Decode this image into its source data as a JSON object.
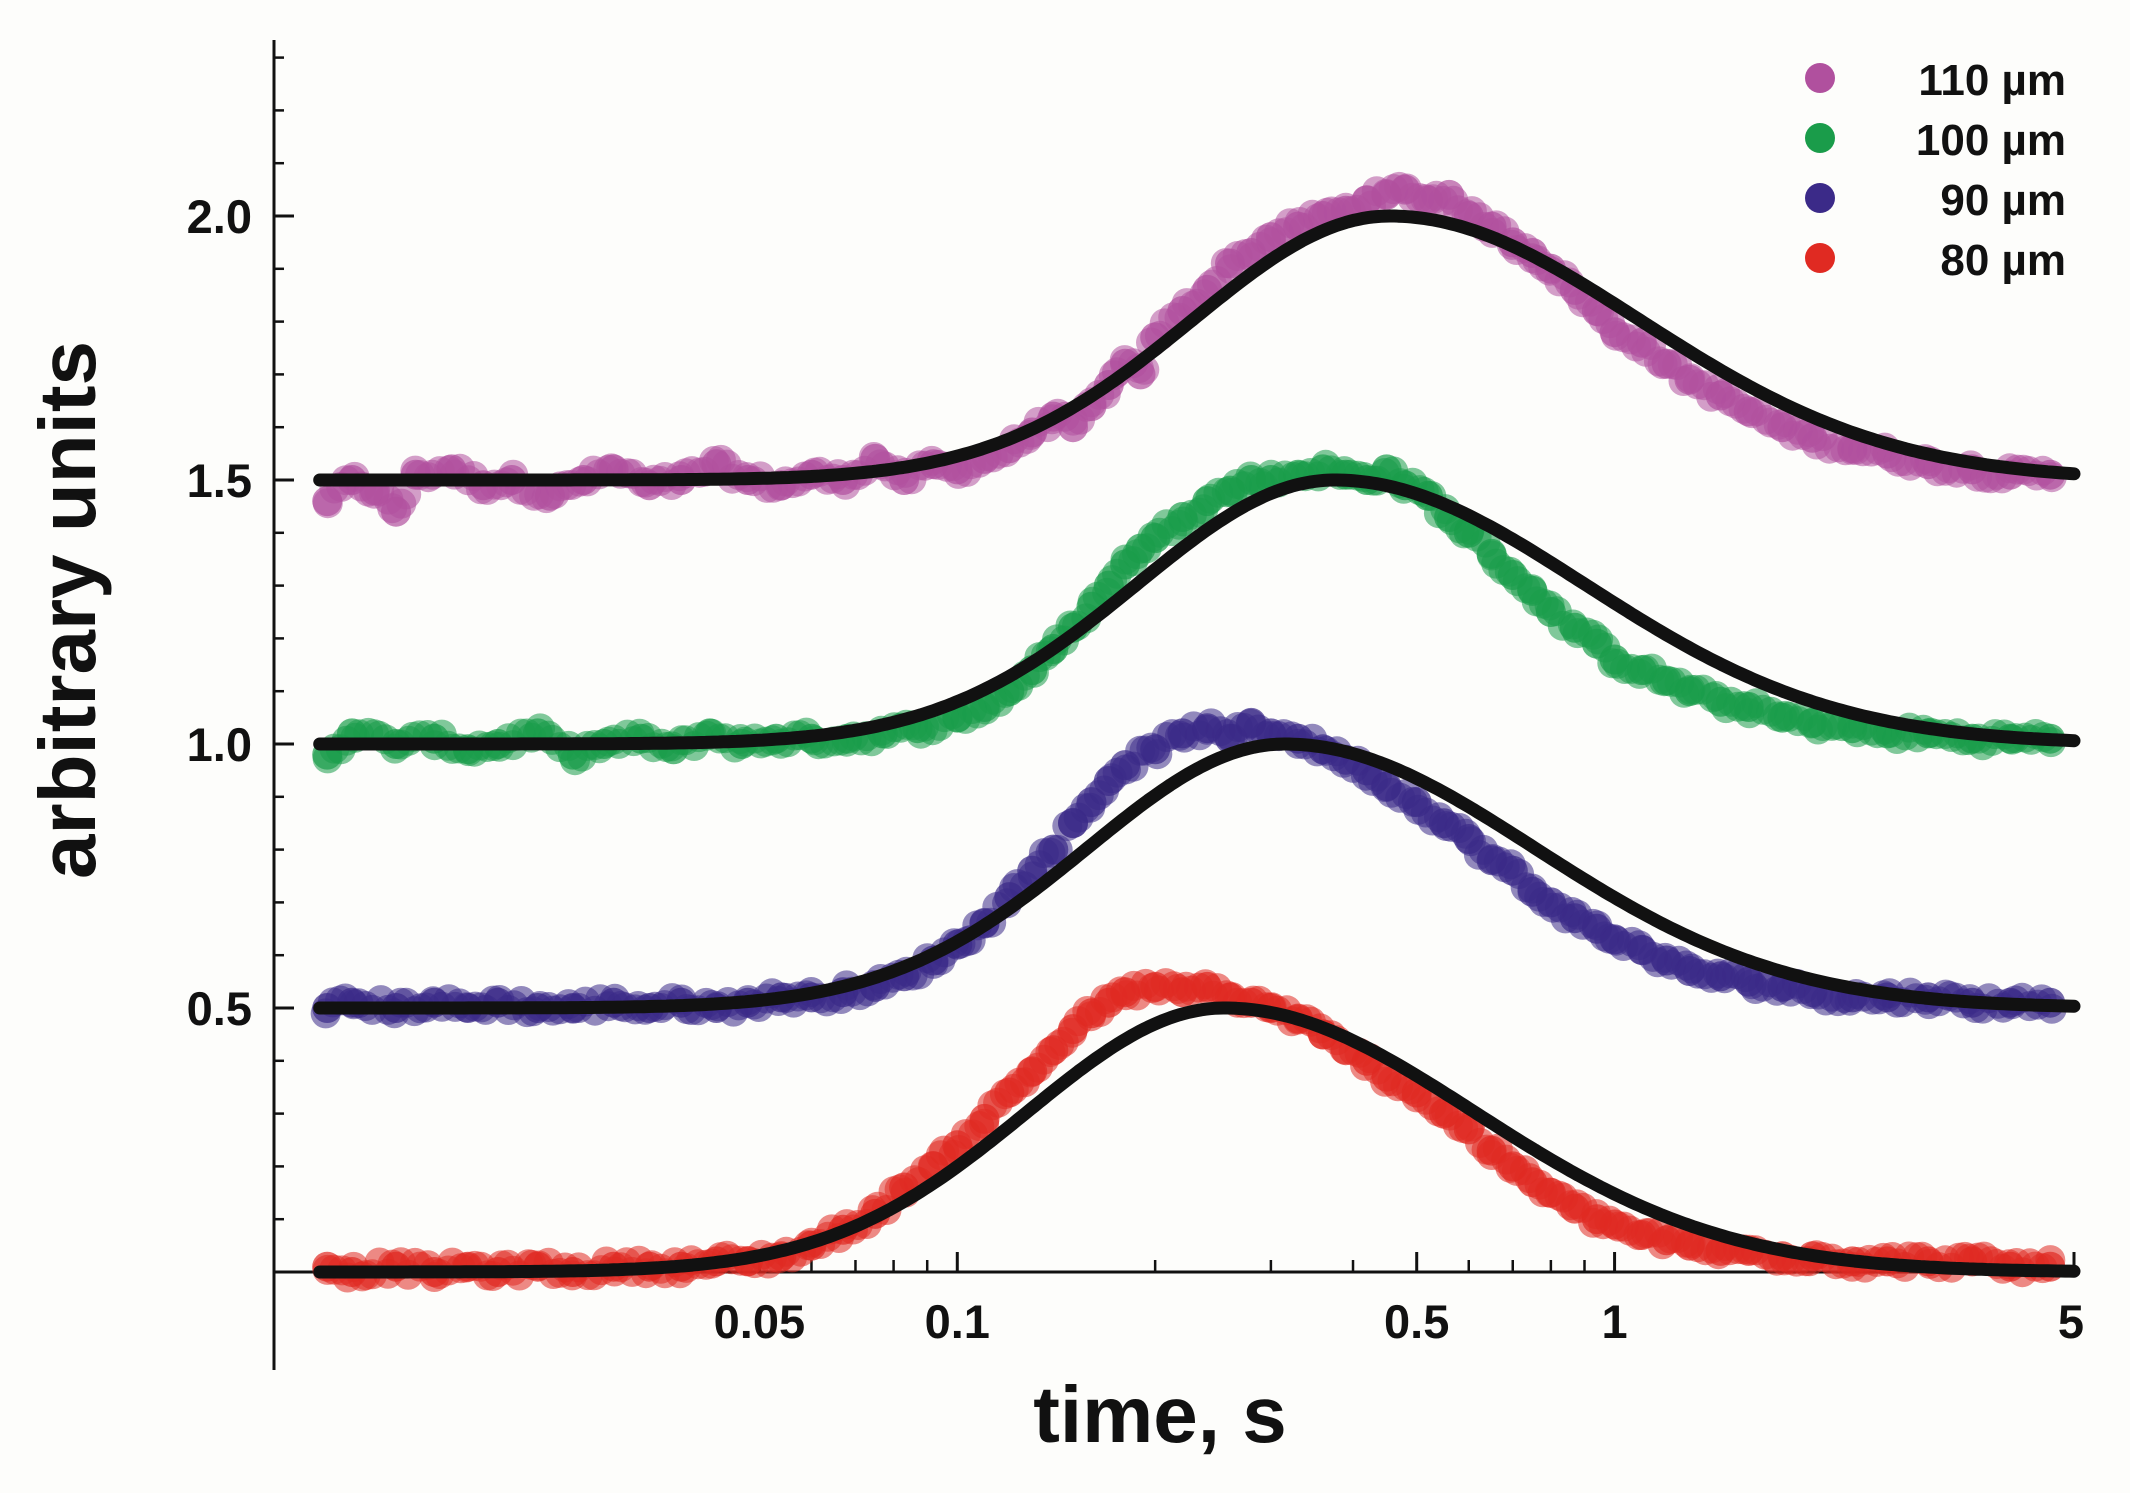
{
  "chart_data": {
    "type": "scatter",
    "title": "",
    "xlabel": "time, s",
    "ylabel": "arbitrary units",
    "x_scale": "log",
    "xlim": [
      0.01,
      5
    ],
    "ylim": [
      -0.18,
      2.32
    ],
    "x_ticks": [
      {
        "value": 0.05,
        "label": "0.05"
      },
      {
        "value": 0.1,
        "label": "0.1"
      },
      {
        "value": 0.5,
        "label": "0.5"
      },
      {
        "value": 1,
        "label": "1"
      },
      {
        "value": 5,
        "label": "5"
      }
    ],
    "x_ticks_unlabeled": [
      0.06,
      0.07,
      0.08,
      0.09,
      0.2,
      0.3,
      0.4,
      0.6,
      0.7,
      0.8,
      0.9
    ],
    "y_ticks": [
      {
        "value": 0.5,
        "label": "0.5"
      },
      {
        "value": 1.0,
        "label": "1.0"
      },
      {
        "value": 1.5,
        "label": "1.5"
      },
      {
        "value": 2.0,
        "label": "2.0"
      }
    ],
    "y_minor_step": 0.1,
    "grid": false,
    "legend_position": "top-right",
    "legend": [
      "110 µm",
      "100 µm",
      "90 µm",
      "80 µm"
    ],
    "series": [
      {
        "name": "110 µm",
        "color": "#b0509e",
        "baseline": 1.5,
        "fit_peak_x": 0.455,
        "points": [
          [
            0.011,
            1.46
          ],
          [
            0.012,
            1.5
          ],
          [
            0.013,
            1.48
          ],
          [
            0.014,
            1.44
          ],
          [
            0.015,
            1.51
          ],
          [
            0.017,
            1.52
          ],
          [
            0.019,
            1.49
          ],
          [
            0.021,
            1.5
          ],
          [
            0.024,
            1.47
          ],
          [
            0.027,
            1.5
          ],
          [
            0.03,
            1.52
          ],
          [
            0.034,
            1.49
          ],
          [
            0.038,
            1.5
          ],
          [
            0.043,
            1.53
          ],
          [
            0.048,
            1.5
          ],
          [
            0.054,
            1.49
          ],
          [
            0.06,
            1.51
          ],
          [
            0.067,
            1.5
          ],
          [
            0.075,
            1.54
          ],
          [
            0.083,
            1.5
          ],
          [
            0.092,
            1.53
          ],
          [
            0.1,
            1.52
          ],
          [
            0.11,
            1.54
          ],
          [
            0.12,
            1.56
          ],
          [
            0.13,
            1.59
          ],
          [
            0.14,
            1.62
          ],
          [
            0.15,
            1.6
          ],
          [
            0.16,
            1.64
          ],
          [
            0.17,
            1.68
          ],
          [
            0.18,
            1.72
          ],
          [
            0.19,
            1.7
          ],
          [
            0.2,
            1.77
          ],
          [
            0.22,
            1.82
          ],
          [
            0.24,
            1.86
          ],
          [
            0.26,
            1.91
          ],
          [
            0.28,
            1.93
          ],
          [
            0.3,
            1.96
          ],
          [
            0.33,
            1.98
          ],
          [
            0.36,
            2.0
          ],
          [
            0.39,
            2.01
          ],
          [
            0.42,
            2.03
          ],
          [
            0.45,
            2.04
          ],
          [
            0.48,
            2.05
          ],
          [
            0.52,
            2.03
          ],
          [
            0.56,
            2.04
          ],
          [
            0.6,
            2.0
          ],
          [
            0.65,
            1.98
          ],
          [
            0.7,
            1.95
          ],
          [
            0.75,
            1.93
          ],
          [
            0.8,
            1.9
          ],
          [
            0.87,
            1.86
          ],
          [
            0.94,
            1.82
          ],
          [
            1.0,
            1.78
          ],
          [
            1.1,
            1.76
          ],
          [
            1.2,
            1.72
          ],
          [
            1.3,
            1.69
          ],
          [
            1.45,
            1.66
          ],
          [
            1.6,
            1.63
          ],
          [
            1.8,
            1.6
          ],
          [
            2.0,
            1.58
          ],
          [
            2.3,
            1.56
          ],
          [
            2.6,
            1.55
          ],
          [
            3.0,
            1.53
          ],
          [
            3.5,
            1.52
          ],
          [
            4.0,
            1.51
          ],
          [
            4.6,
            1.51
          ]
        ]
      },
      {
        "name": "100 µm",
        "color": "#1a9c4a",
        "baseline": 1.0,
        "fit_peak_x": 0.375,
        "points": [
          [
            0.011,
            0.98
          ],
          [
            0.012,
            1.02
          ],
          [
            0.014,
            1.0
          ],
          [
            0.016,
            1.01
          ],
          [
            0.018,
            0.99
          ],
          [
            0.02,
            1.0
          ],
          [
            0.023,
            1.02
          ],
          [
            0.026,
            0.98
          ],
          [
            0.029,
            1.0
          ],
          [
            0.033,
            1.01
          ],
          [
            0.037,
            0.99
          ],
          [
            0.042,
            1.02
          ],
          [
            0.047,
            1.0
          ],
          [
            0.053,
            1.01
          ],
          [
            0.06,
            1.01
          ],
          [
            0.068,
            1.01
          ],
          [
            0.077,
            1.02
          ],
          [
            0.087,
            1.03
          ],
          [
            0.1,
            1.05
          ],
          [
            0.11,
            1.07
          ],
          [
            0.12,
            1.1
          ],
          [
            0.13,
            1.14
          ],
          [
            0.14,
            1.18
          ],
          [
            0.15,
            1.22
          ],
          [
            0.16,
            1.26
          ],
          [
            0.17,
            1.3
          ],
          [
            0.18,
            1.34
          ],
          [
            0.19,
            1.37
          ],
          [
            0.2,
            1.39
          ],
          [
            0.22,
            1.43
          ],
          [
            0.24,
            1.46
          ],
          [
            0.26,
            1.48
          ],
          [
            0.28,
            1.5
          ],
          [
            0.3,
            1.5
          ],
          [
            0.33,
            1.51
          ],
          [
            0.36,
            1.52
          ],
          [
            0.39,
            1.51
          ],
          [
            0.42,
            1.5
          ],
          [
            0.45,
            1.52
          ],
          [
            0.48,
            1.49
          ],
          [
            0.52,
            1.47
          ],
          [
            0.56,
            1.43
          ],
          [
            0.6,
            1.4
          ],
          [
            0.65,
            1.36
          ],
          [
            0.7,
            1.32
          ],
          [
            0.75,
            1.29
          ],
          [
            0.8,
            1.25
          ],
          [
            0.87,
            1.22
          ],
          [
            0.94,
            1.19
          ],
          [
            1.0,
            1.16
          ],
          [
            1.1,
            1.14
          ],
          [
            1.2,
            1.12
          ],
          [
            1.3,
            1.1
          ],
          [
            1.45,
            1.08
          ],
          [
            1.6,
            1.07
          ],
          [
            1.8,
            1.05
          ],
          [
            2.0,
            1.04
          ],
          [
            2.3,
            1.03
          ],
          [
            2.6,
            1.02
          ],
          [
            3.0,
            1.02
          ],
          [
            3.5,
            1.01
          ],
          [
            4.0,
            1.01
          ],
          [
            4.6,
            1.01
          ]
        ]
      },
      {
        "name": "90 µm",
        "color": "#3b2a88",
        "baseline": 0.5,
        "fit_peak_x": 0.315,
        "points": [
          [
            0.011,
            0.5
          ],
          [
            0.012,
            0.51
          ],
          [
            0.014,
            0.5
          ],
          [
            0.016,
            0.51
          ],
          [
            0.018,
            0.5
          ],
          [
            0.02,
            0.51
          ],
          [
            0.023,
            0.5
          ],
          [
            0.026,
            0.5
          ],
          [
            0.03,
            0.51
          ],
          [
            0.034,
            0.5
          ],
          [
            0.038,
            0.51
          ],
          [
            0.043,
            0.5
          ],
          [
            0.048,
            0.51
          ],
          [
            0.054,
            0.52
          ],
          [
            0.06,
            0.52
          ],
          [
            0.067,
            0.53
          ],
          [
            0.075,
            0.54
          ],
          [
            0.083,
            0.56
          ],
          [
            0.092,
            0.59
          ],
          [
            0.1,
            0.62
          ],
          [
            0.11,
            0.66
          ],
          [
            0.12,
            0.71
          ],
          [
            0.13,
            0.76
          ],
          [
            0.14,
            0.8
          ],
          [
            0.15,
            0.85
          ],
          [
            0.16,
            0.89
          ],
          [
            0.17,
            0.93
          ],
          [
            0.18,
            0.96
          ],
          [
            0.2,
            0.99
          ],
          [
            0.22,
            1.02
          ],
          [
            0.24,
            1.03
          ],
          [
            0.26,
            1.01
          ],
          [
            0.28,
            1.04
          ],
          [
            0.3,
            1.02
          ],
          [
            0.33,
            1.01
          ],
          [
            0.36,
            0.99
          ],
          [
            0.39,
            0.97
          ],
          [
            0.42,
            0.95
          ],
          [
            0.45,
            0.92
          ],
          [
            0.5,
            0.89
          ],
          [
            0.55,
            0.85
          ],
          [
            0.6,
            0.82
          ],
          [
            0.65,
            0.78
          ],
          [
            0.7,
            0.76
          ],
          [
            0.75,
            0.72
          ],
          [
            0.8,
            0.7
          ],
          [
            0.87,
            0.67
          ],
          [
            0.94,
            0.65
          ],
          [
            1.0,
            0.63
          ],
          [
            1.1,
            0.61
          ],
          [
            1.2,
            0.59
          ],
          [
            1.3,
            0.57
          ],
          [
            1.45,
            0.56
          ],
          [
            1.6,
            0.55
          ],
          [
            1.8,
            0.54
          ],
          [
            2.0,
            0.53
          ],
          [
            2.3,
            0.52
          ],
          [
            2.6,
            0.52
          ],
          [
            3.0,
            0.52
          ],
          [
            3.5,
            0.51
          ],
          [
            4.0,
            0.51
          ],
          [
            4.6,
            0.51
          ]
        ]
      },
      {
        "name": "80 µm",
        "color": "#e02a22",
        "baseline": 0.0,
        "fit_peak_x": 0.255,
        "points": [
          [
            0.011,
            0.01
          ],
          [
            0.012,
            0.0
          ],
          [
            0.014,
            0.01
          ],
          [
            0.016,
            0.0
          ],
          [
            0.018,
            0.01
          ],
          [
            0.02,
            0.0
          ],
          [
            0.023,
            0.01
          ],
          [
            0.026,
            0.0
          ],
          [
            0.03,
            0.01
          ],
          [
            0.034,
            0.01
          ],
          [
            0.038,
            0.01
          ],
          [
            0.043,
            0.02
          ],
          [
            0.048,
            0.02
          ],
          [
            0.054,
            0.03
          ],
          [
            0.06,
            0.05
          ],
          [
            0.067,
            0.08
          ],
          [
            0.075,
            0.11
          ],
          [
            0.083,
            0.16
          ],
          [
            0.092,
            0.2
          ],
          [
            0.1,
            0.24
          ],
          [
            0.11,
            0.29
          ],
          [
            0.12,
            0.34
          ],
          [
            0.13,
            0.38
          ],
          [
            0.14,
            0.42
          ],
          [
            0.15,
            0.46
          ],
          [
            0.16,
            0.49
          ],
          [
            0.17,
            0.51
          ],
          [
            0.18,
            0.53
          ],
          [
            0.2,
            0.54
          ],
          [
            0.22,
            0.53
          ],
          [
            0.24,
            0.54
          ],
          [
            0.26,
            0.52
          ],
          [
            0.28,
            0.51
          ],
          [
            0.3,
            0.5
          ],
          [
            0.33,
            0.48
          ],
          [
            0.36,
            0.45
          ],
          [
            0.39,
            0.42
          ],
          [
            0.42,
            0.4
          ],
          [
            0.45,
            0.37
          ],
          [
            0.5,
            0.34
          ],
          [
            0.55,
            0.3
          ],
          [
            0.6,
            0.27
          ],
          [
            0.65,
            0.23
          ],
          [
            0.7,
            0.2
          ],
          [
            0.75,
            0.17
          ],
          [
            0.8,
            0.15
          ],
          [
            0.87,
            0.12
          ],
          [
            0.94,
            0.1
          ],
          [
            1.0,
            0.09
          ],
          [
            1.1,
            0.07
          ],
          [
            1.2,
            0.06
          ],
          [
            1.3,
            0.05
          ],
          [
            1.45,
            0.04
          ],
          [
            1.6,
            0.04
          ],
          [
            1.8,
            0.03
          ],
          [
            2.0,
            0.03
          ],
          [
            2.3,
            0.02
          ],
          [
            2.6,
            0.02
          ],
          [
            3.0,
            0.02
          ],
          [
            3.5,
            0.02
          ],
          [
            4.0,
            0.01
          ],
          [
            4.6,
            0.01
          ]
        ]
      }
    ]
  }
}
